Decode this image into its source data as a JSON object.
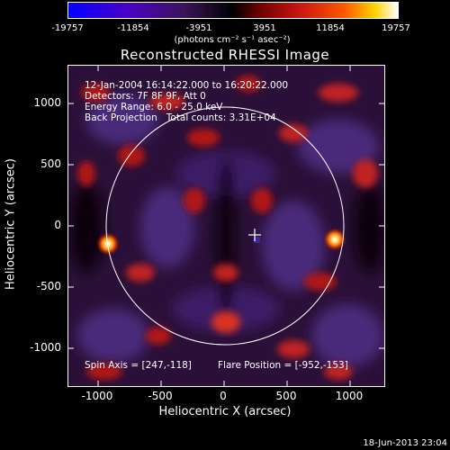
{
  "colorbar": {
    "ticks": [
      "-19757",
      "-11854",
      "-3951",
      "3951",
      "11854",
      "19757"
    ],
    "units": "(photons cm⁻² s⁻¹ asec⁻²)"
  },
  "title": "Reconstructed RHESSI Image",
  "info": {
    "line1": "12-Jan-2004 16:14:22.000 to 16:20:22.000",
    "line2": "Detectors: 7F 8F 9F, Att 0",
    "line3": "Energy Range: 6.0 - 25.0 keV",
    "line4": "Back Projection   Total counts: 3.31E+04"
  },
  "spin_axis": "Spin Axis = [247,-118]",
  "flare_position": "Flare Position = [-952,-153]",
  "axes": {
    "xlabel": "Heliocentric X (arcsec)",
    "ylabel": "Heliocentric Y (arcsec)",
    "xticks": [
      "-1000",
      "-500",
      "0",
      "500",
      "1000"
    ],
    "yticks": [
      "1000",
      "500",
      "0",
      "-500",
      "-1000"
    ]
  },
  "footer": "18-Jun-2013 23:04"
}
